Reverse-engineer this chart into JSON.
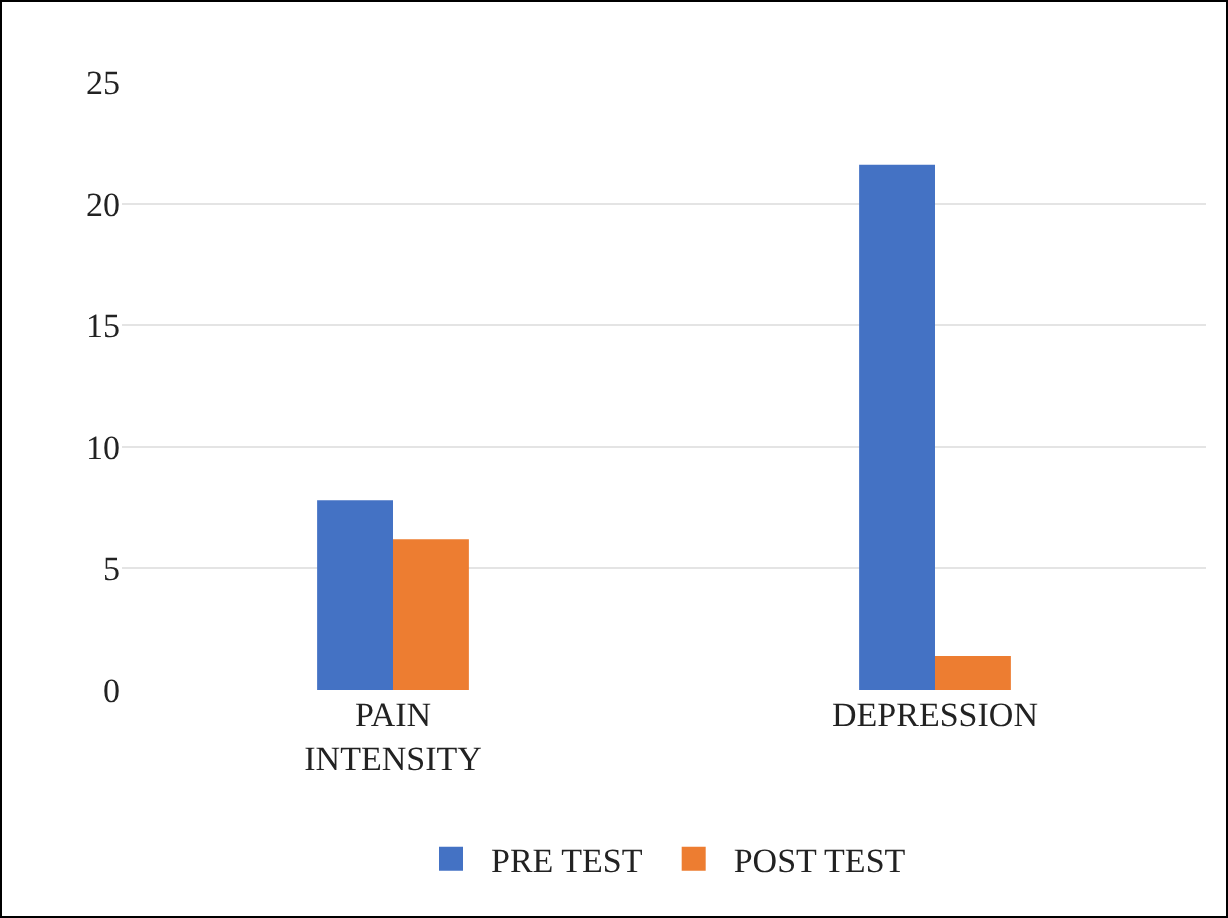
{
  "chart_data": {
    "type": "bar",
    "categories": [
      "PAIN INTENSITY",
      "DEPRESSION"
    ],
    "series": [
      {
        "name": "PRE TEST",
        "color": "#4472c4",
        "values": [
          7.8,
          21.6
        ]
      },
      {
        "name": "POST TEST",
        "color": "#ed7d31",
        "values": [
          6.2,
          1.4
        ]
      }
    ],
    "ylim": [
      0,
      25
    ],
    "yticks": [
      0,
      5,
      10,
      15,
      20,
      25
    ],
    "grid": "y",
    "legend": "bottom"
  }
}
